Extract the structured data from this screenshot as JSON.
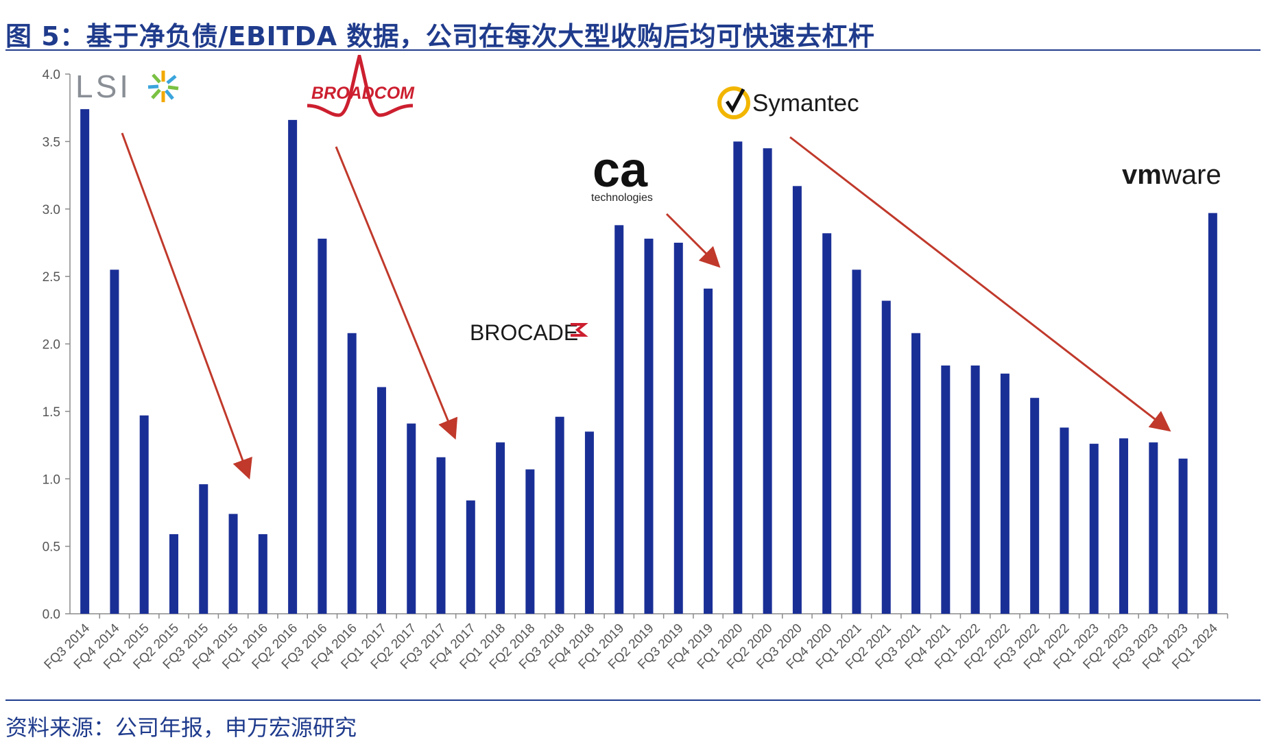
{
  "title": "图 5：基于净负债/EBITDA 数据，公司在每次大型收购后均可快速去杠杆",
  "source": "资料来源：公司年报，申万宏源研究",
  "logos": {
    "lsi": "LSI",
    "broadcom": "BROADCOM",
    "brocade": "BROCADE",
    "ca": "ca",
    "ca_sub": "technologies",
    "symantec": "Symantec",
    "vmware_vm": "vm",
    "vmware_ware": "ware"
  },
  "colors": {
    "bar": "#1a2f96",
    "arrow": "#c0392b",
    "title": "#1f3b8c"
  },
  "chart_data": {
    "type": "bar",
    "ylim": [
      0,
      4.0
    ],
    "yticks": [
      "0.0",
      "0.5",
      "1.0",
      "1.5",
      "2.0",
      "2.5",
      "3.0",
      "3.5",
      "4.0"
    ],
    "grid": false,
    "categories": [
      "FQ3 2014",
      "FQ4 2014",
      "FQ1 2015",
      "FQ2 2015",
      "FQ3 2015",
      "FQ4 2015",
      "FQ1 2016",
      "FQ2 2016",
      "FQ3 2016",
      "FQ4 2016",
      "FQ1 2017",
      "FQ2 2017",
      "FQ3 2017",
      "FQ4 2017",
      "FQ1 2018",
      "FQ2 2018",
      "FQ3 2018",
      "FQ4 2018",
      "FQ1 2019",
      "FQ2 2019",
      "FQ3 2019",
      "FQ4 2019",
      "FQ1 2020",
      "FQ2 2020",
      "FQ3 2020",
      "FQ4 2020",
      "FQ1 2021",
      "FQ2 2021",
      "FQ3 2021",
      "FQ4 2021",
      "FQ1 2022",
      "FQ2 2022",
      "FQ3 2022",
      "FQ4 2022",
      "FQ1 2023",
      "FQ2 2023",
      "FQ3 2023",
      "FQ4 2023",
      "FQ1 2024"
    ],
    "values": [
      3.74,
      2.55,
      1.47,
      0.59,
      0.96,
      0.74,
      0.59,
      3.66,
      2.78,
      2.08,
      1.68,
      1.41,
      1.16,
      0.84,
      1.27,
      1.07,
      1.46,
      1.35,
      2.88,
      2.78,
      2.75,
      2.41,
      3.5,
      3.45,
      3.17,
      2.82,
      2.55,
      2.32,
      2.08,
      1.84,
      1.84,
      1.78,
      1.6,
      1.38,
      1.26,
      1.3,
      1.27,
      1.15,
      2.97
    ]
  }
}
